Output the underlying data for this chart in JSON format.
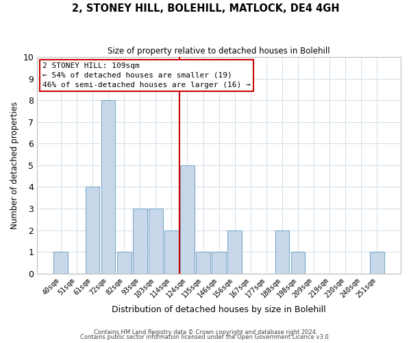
{
  "title": "2, STONEY HILL, BOLEHILL, MATLOCK, DE4 4GH",
  "subtitle": "Size of property relative to detached houses in Bolehill",
  "xlabel": "Distribution of detached houses by size in Bolehill",
  "ylabel": "Number of detached properties",
  "categories": [
    "40sqm",
    "51sqm",
    "61sqm",
    "72sqm",
    "82sqm",
    "93sqm",
    "103sqm",
    "114sqm",
    "124sqm",
    "135sqm",
    "146sqm",
    "156sqm",
    "167sqm",
    "177sqm",
    "188sqm",
    "198sqm",
    "209sqm",
    "219sqm",
    "230sqm",
    "240sqm",
    "251sqm"
  ],
  "values": [
    1,
    0,
    4,
    8,
    1,
    3,
    3,
    2,
    5,
    1,
    1,
    2,
    0,
    0,
    2,
    1,
    0,
    0,
    0,
    0,
    1
  ],
  "bar_color": "#c8d8ea",
  "bar_edge_color": "#7aaac8",
  "red_line_x": 7.5,
  "ylim": [
    0,
    10
  ],
  "yticks": [
    0,
    1,
    2,
    3,
    4,
    5,
    6,
    7,
    8,
    9,
    10
  ],
  "annotation_title": "2 STONEY HILL: 109sqm",
  "annotation_line1": "← 54% of detached houses are smaller (19)",
  "annotation_line2": "46% of semi-detached houses are larger (16) →",
  "annotation_box_color": "#ffffff",
  "annotation_box_edge": "#cc0000",
  "footer1": "Contains HM Land Registry data © Crown copyright and database right 2024.",
  "footer2": "Contains public sector information licensed under the Open Government Licence v3.0.",
  "background_color": "#ffffff",
  "grid_color": "#d0dde8"
}
